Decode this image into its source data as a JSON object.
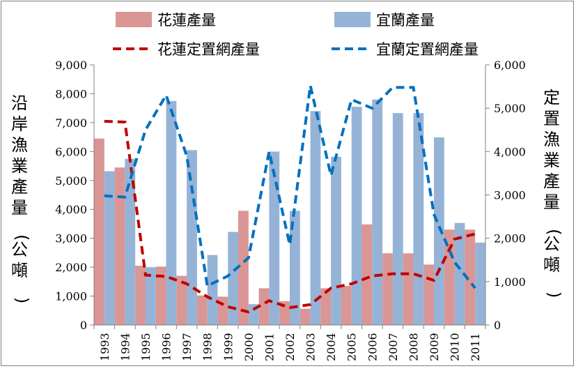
{
  "chart_data": {
    "type": "bar",
    "title": "",
    "categories": [
      "1993",
      "1994",
      "1995",
      "1996",
      "1997",
      "1998",
      "1999",
      "2000",
      "2001",
      "2002",
      "2003",
      "2004",
      "2005",
      "2006",
      "2007",
      "2008",
      "2009",
      "2010",
      "2011"
    ],
    "series": [
      {
        "name": "花蓮產量",
        "kind": "bar",
        "axis": "left",
        "color": "#d99694",
        "values": [
          6450,
          5450,
          2050,
          2020,
          1700,
          1020,
          980,
          3950,
          1270,
          820,
          560,
          1270,
          1350,
          3480,
          2480,
          2480,
          2090,
          3300,
          3300
        ]
      },
      {
        "name": "宜蘭產量",
        "kind": "bar",
        "axis": "left",
        "color": "#95b3d7",
        "values": [
          5320,
          5750,
          2000,
          7750,
          6050,
          2420,
          3220,
          720,
          6000,
          3950,
          7400,
          5820,
          7550,
          7800,
          7330,
          7330,
          6490,
          3530,
          2850
        ]
      },
      {
        "name": "花蓮定置網產量",
        "kind": "line",
        "axis": "right",
        "color": "#c00000",
        "values": [
          4700,
          4680,
          1150,
          1120,
          950,
          650,
          420,
          300,
          560,
          400,
          470,
          850,
          950,
          1130,
          1180,
          1180,
          1030,
          1980,
          2100
        ]
      },
      {
        "name": "宜蘭定置網產量",
        "kind": "line",
        "axis": "right",
        "color": "#0070c0",
        "values": [
          2980,
          2950,
          4500,
          5300,
          3900,
          900,
          1130,
          1550,
          4000,
          1850,
          5520,
          3450,
          5200,
          5000,
          5480,
          5480,
          2550,
          1450,
          850
        ]
      }
    ],
    "ylim": [
      0,
      9000
    ],
    "y2lim": [
      0,
      6000
    ],
    "yticks": [
      "0",
      "1,000",
      "2,000",
      "3,000",
      "4,000",
      "5,000",
      "6,000",
      "7,000",
      "8,000",
      "9,000"
    ],
    "y2ticks": [
      "0",
      "1,000",
      "2,000",
      "3,000",
      "4,000",
      "5,000",
      "6,000"
    ],
    "ylabel": "沿岸漁業產量(公噸)",
    "y2label": "定置漁業產量(公噸)",
    "xlabel": "",
    "legend_position": "top",
    "grid": false
  }
}
